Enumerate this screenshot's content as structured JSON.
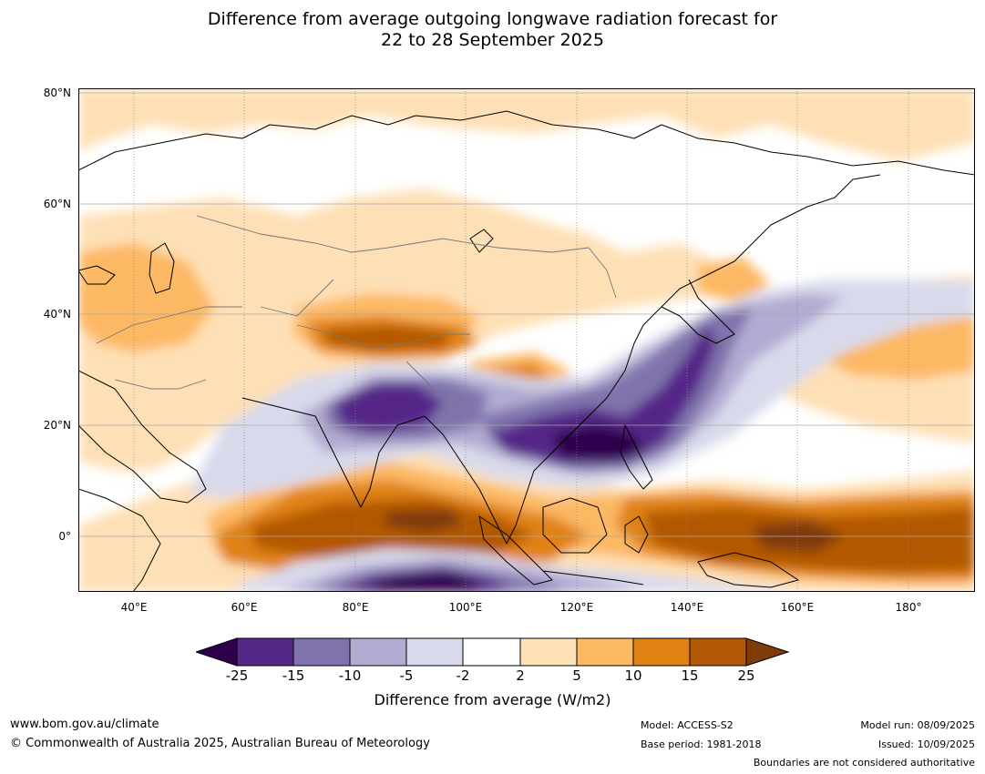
{
  "title": {
    "line1": "Difference from average outgoing longwave radiation forecast for",
    "line2": "22 to 28 September 2025"
  },
  "map": {
    "lat_labels": [
      "80°N",
      "60°N",
      "40°N",
      "20°N",
      "0°"
    ],
    "lon_labels": [
      "40°E",
      "60°E",
      "80°E",
      "100°E",
      "120°E",
      "140°E",
      "160°E",
      "180°"
    ],
    "extent": {
      "lon_min": 30,
      "lon_max": 192,
      "lat_min": -10,
      "lat_max": 80
    }
  },
  "colorbar": {
    "ticks": [
      "-25",
      "-15",
      "-10",
      "-5",
      "-2",
      "2",
      "5",
      "10",
      "15",
      "25"
    ],
    "colors": [
      "#2d004b",
      "#542788",
      "#8073ac",
      "#b2abd2",
      "#d8daeb",
      "#ffffff",
      "#fee0b6",
      "#fdb863",
      "#e08214",
      "#b35806",
      "#7f3b08"
    ],
    "label": "Difference from average (W/m2)"
  },
  "footer": {
    "url": "www.bom.gov.au/climate",
    "copyright": "© Commonwealth of Australia 2025, Australian Bureau of Meteorology",
    "model": "Model: ACCESS-S2",
    "base_period": "Base period: 1981-2018",
    "model_run": "Model run: 08/09/2025",
    "issued": "Issued: 10/09/2025",
    "disclaimer": "Boundaries are not considered authoritative"
  }
}
